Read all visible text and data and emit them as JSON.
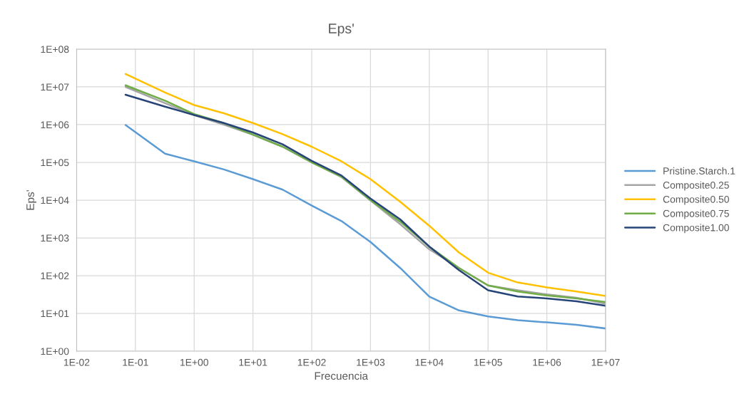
{
  "chart_data": {
    "type": "line",
    "title": "Eps'",
    "xlabel": "Frecuencia",
    "ylabel": "Eps'",
    "log": "xy",
    "grid": true,
    "legend": "right",
    "line_style": "solid",
    "marker": "none",
    "x": [
      0.068,
      0.32,
      1,
      3.2,
      10,
      32,
      100,
      320,
      1000,
      3200,
      10000,
      32000,
      100000,
      320000,
      1000000,
      3200000,
      10000000
    ],
    "xlim": [
      0.01,
      10000000
    ],
    "xticks": [
      {
        "value": 0.01,
        "label": "1E-02"
      },
      {
        "value": 0.1,
        "label": "1E-01"
      },
      {
        "value": 1,
        "label": "1E+00"
      },
      {
        "value": 10,
        "label": "1E+01"
      },
      {
        "value": 100,
        "label": "1E+02"
      },
      {
        "value": 1000,
        "label": "1E+03"
      },
      {
        "value": 10000,
        "label": "1E+04"
      },
      {
        "value": 100000,
        "label": "1E+05"
      },
      {
        "value": 1000000,
        "label": "1E+06"
      },
      {
        "value": 10000000,
        "label": "1E+07"
      }
    ],
    "ylim": [
      1,
      100000000
    ],
    "yticks": [
      {
        "value": 1,
        "label": "1E+00"
      },
      {
        "value": 10,
        "label": "1E+01"
      },
      {
        "value": 100,
        "label": "1E+02"
      },
      {
        "value": 1000,
        "label": "1E+03"
      },
      {
        "value": 10000,
        "label": "1E+04"
      },
      {
        "value": 100000,
        "label": "1E+05"
      },
      {
        "value": 1000000,
        "label": "1E+06"
      },
      {
        "value": 10000000,
        "label": "1E+07"
      },
      {
        "value": 100000000,
        "label": "1E+08"
      }
    ],
    "series": [
      {
        "name": "Pristine.Starch.1",
        "color": "#5b9bd5",
        "values": [
          980000,
          170000,
          107000,
          65000,
          36000,
          19000,
          7200,
          2800,
          780,
          160,
          28,
          12,
          8.3,
          6.6,
          5.8,
          5.0,
          4.0
        ]
      },
      {
        "name": "Composite0.25",
        "color": "#a5a5a5",
        "values": [
          10000000,
          3700000,
          1800000,
          1000000,
          540000,
          260000,
          100000,
          41000,
          9800,
          2300,
          500,
          160,
          55,
          41,
          32,
          26,
          18
        ]
      },
      {
        "name": "Composite0.50",
        "color": "#ffc000",
        "values": [
          22000000,
          7100000,
          3300000,
          2000000,
          1100000,
          560000,
          260000,
          107000,
          36000,
          9100,
          2100,
          410,
          120,
          66,
          49,
          38,
          29
        ]
      },
      {
        "name": "Composite0.75",
        "color": "#70ad47",
        "values": [
          11000000,
          4300000,
          1900000,
          1100000,
          540000,
          260000,
          100000,
          42000,
          10000,
          2700,
          590,
          160,
          55,
          38,
          30,
          25,
          20
        ]
      },
      {
        "name": "Composite1.00",
        "color": "#264478",
        "values": [
          6200000,
          3000000,
          1800000,
          1100000,
          620000,
          300000,
          110000,
          45000,
          11000,
          3100,
          590,
          140,
          41,
          28,
          25,
          21,
          16
        ]
      }
    ]
  }
}
